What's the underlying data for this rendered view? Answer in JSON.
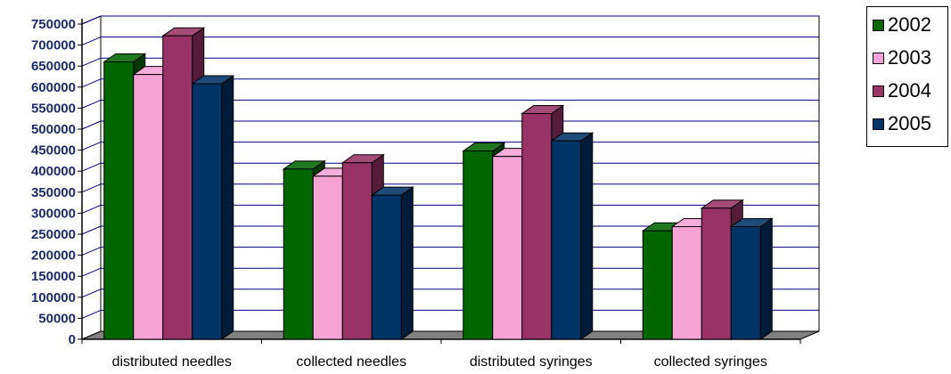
{
  "chart_data": {
    "type": "bar",
    "title": "",
    "xlabel": "",
    "ylabel": "",
    "categories": [
      "distributed needles",
      "collected needles",
      "distributed syringes",
      "collected syringes"
    ],
    "series": [
      {
        "name": "2002",
        "color": "#006600",
        "values": [
          660000,
          405000,
          448000,
          258000
        ]
      },
      {
        "name": "2003",
        "color": "#f4a3d4",
        "values": [
          630000,
          388000,
          435000,
          268000
        ]
      },
      {
        "name": "2004",
        "color": "#993366",
        "values": [
          722000,
          420000,
          537000,
          312000
        ]
      },
      {
        "name": "2005",
        "color": "#003366",
        "values": [
          608000,
          343000,
          472000,
          268000
        ]
      }
    ],
    "ylim": [
      0,
      750000
    ],
    "yticks": [
      0,
      50000,
      100000,
      150000,
      200000,
      250000,
      300000,
      350000,
      400000,
      450000,
      500000,
      550000,
      600000,
      650000,
      700000,
      750000
    ],
    "ytick_labels": [
      "0",
      "50000",
      "100000",
      "150000",
      "200000",
      "250000",
      "300000",
      "350000",
      "400000",
      "450000",
      "500000",
      "550000",
      "600000",
      "650000",
      "700000",
      "750000"
    ],
    "grid": true,
    "style": "3d",
    "legend_position": "top-right"
  }
}
